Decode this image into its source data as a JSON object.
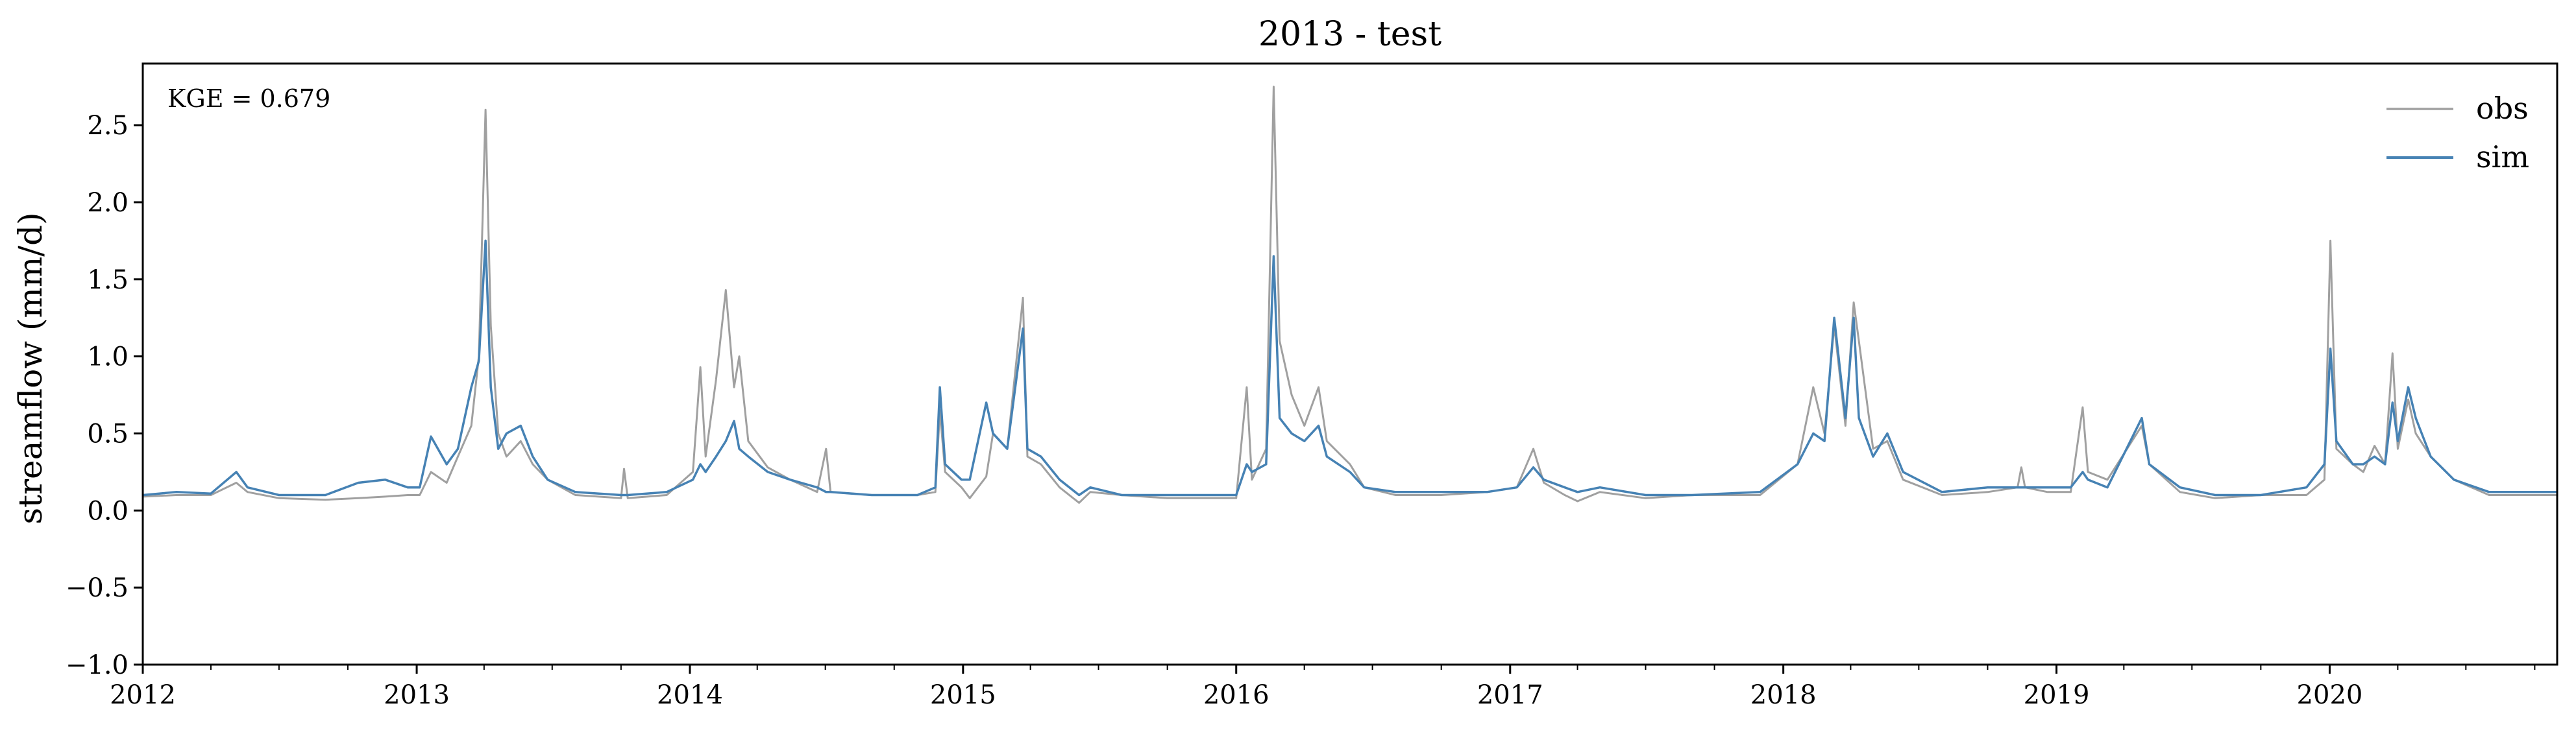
{
  "chart_data": {
    "type": "line",
    "title": "2013 - test",
    "xlabel": "",
    "ylabel": "streamflow (mm/d)",
    "annotation": "KGE = 0.679",
    "x_range": [
      "2012-01-01",
      "2020-10-31"
    ],
    "x_ticks": [
      "2012",
      "2013",
      "2014",
      "2015",
      "2016",
      "2017",
      "2018",
      "2019",
      "2020"
    ],
    "ylim": [
      -1.0,
      2.9
    ],
    "y_ticks": [
      "−1.0",
      "−0.5",
      "0.0",
      "0.5",
      "1.0",
      "1.5",
      "2.0",
      "2.5"
    ],
    "y_tick_values": [
      -1.0,
      -0.5,
      0.0,
      0.5,
      1.0,
      1.5,
      2.0,
      2.5
    ],
    "grid": false,
    "legend": {
      "position": "top-right",
      "entries": [
        "obs",
        "sim"
      ]
    },
    "series": [
      {
        "name": "obs",
        "color": "#a0a0a0",
        "points": [
          [
            "2012-01-01",
            0.09
          ],
          [
            "2012-02-15",
            0.1
          ],
          [
            "2012-04-01",
            0.1
          ],
          [
            "2012-05-05",
            0.18
          ],
          [
            "2012-05-20",
            0.12
          ],
          [
            "2012-07-01",
            0.08
          ],
          [
            "2012-09-01",
            0.07
          ],
          [
            "2012-10-15",
            0.08
          ],
          [
            "2012-11-20",
            0.09
          ],
          [
            "2012-12-20",
            0.1
          ],
          [
            "2013-01-05",
            0.1
          ],
          [
            "2013-01-20",
            0.25
          ],
          [
            "2013-02-10",
            0.18
          ],
          [
            "2013-02-25",
            0.35
          ],
          [
            "2013-03-15",
            0.55
          ],
          [
            "2013-03-25",
            1.0
          ],
          [
            "2013-04-03",
            2.6
          ],
          [
            "2013-04-10",
            1.2
          ],
          [
            "2013-04-20",
            0.5
          ],
          [
            "2013-05-01",
            0.35
          ],
          [
            "2013-05-20",
            0.45
          ],
          [
            "2013-06-05",
            0.3
          ],
          [
            "2013-06-25",
            0.2
          ],
          [
            "2013-08-01",
            0.1
          ],
          [
            "2013-10-01",
            0.08
          ],
          [
            "2013-10-05",
            0.27
          ],
          [
            "2013-10-10",
            0.08
          ],
          [
            "2013-12-01",
            0.1
          ],
          [
            "2014-01-05",
            0.25
          ],
          [
            "2014-01-15",
            0.93
          ],
          [
            "2014-01-22",
            0.35
          ],
          [
            "2014-02-05",
            0.85
          ],
          [
            "2014-02-18",
            1.43
          ],
          [
            "2014-03-01",
            0.8
          ],
          [
            "2014-03-08",
            1.0
          ],
          [
            "2014-03-20",
            0.45
          ],
          [
            "2014-04-15",
            0.28
          ],
          [
            "2014-05-15",
            0.2
          ],
          [
            "2014-06-20",
            0.12
          ],
          [
            "2014-07-02",
            0.4
          ],
          [
            "2014-07-08",
            0.12
          ],
          [
            "2014-09-01",
            0.1
          ],
          [
            "2014-11-01",
            0.1
          ],
          [
            "2014-11-25",
            0.12
          ],
          [
            "2014-12-01",
            0.65
          ],
          [
            "2014-12-08",
            0.25
          ],
          [
            "2014-12-30",
            0.15
          ],
          [
            "2015-01-10",
            0.08
          ],
          [
            "2015-02-01",
            0.22
          ],
          [
            "2015-02-10",
            0.5
          ],
          [
            "2015-03-01",
            0.4
          ],
          [
            "2015-03-22",
            1.38
          ],
          [
            "2015-03-28",
            0.35
          ],
          [
            "2015-04-15",
            0.3
          ],
          [
            "2015-05-10",
            0.15
          ],
          [
            "2015-06-05",
            0.05
          ],
          [
            "2015-06-20",
            0.12
          ],
          [
            "2015-08-01",
            0.1
          ],
          [
            "2015-10-01",
            0.08
          ],
          [
            "2016-01-01",
            0.08
          ],
          [
            "2016-01-15",
            0.8
          ],
          [
            "2016-01-22",
            0.2
          ],
          [
            "2016-02-10",
            0.4
          ],
          [
            "2016-02-20",
            2.75
          ],
          [
            "2016-02-28",
            1.1
          ],
          [
            "2016-03-15",
            0.75
          ],
          [
            "2016-04-01",
            0.55
          ],
          [
            "2016-04-20",
            0.8
          ],
          [
            "2016-05-01",
            0.45
          ],
          [
            "2016-06-01",
            0.3
          ],
          [
            "2016-06-20",
            0.15
          ],
          [
            "2016-08-01",
            0.1
          ],
          [
            "2016-10-01",
            0.1
          ],
          [
            "2016-12-01",
            0.12
          ],
          [
            "2017-01-10",
            0.15
          ],
          [
            "2017-02-01",
            0.4
          ],
          [
            "2017-02-15",
            0.18
          ],
          [
            "2017-03-15",
            0.1
          ],
          [
            "2017-04-01",
            0.06
          ],
          [
            "2017-05-01",
            0.12
          ],
          [
            "2017-07-01",
            0.08
          ],
          [
            "2017-09-01",
            0.1
          ],
          [
            "2017-12-01",
            0.1
          ],
          [
            "2018-01-20",
            0.3
          ],
          [
            "2018-02-10",
            0.8
          ],
          [
            "2018-02-25",
            0.5
          ],
          [
            "2018-03-10",
            1.2
          ],
          [
            "2018-03-25",
            0.55
          ],
          [
            "2018-04-05",
            1.35
          ],
          [
            "2018-04-12",
            1.1
          ],
          [
            "2018-05-01",
            0.4
          ],
          [
            "2018-05-20",
            0.45
          ],
          [
            "2018-06-10",
            0.2
          ],
          [
            "2018-08-01",
            0.1
          ],
          [
            "2018-10-01",
            0.12
          ],
          [
            "2018-11-10",
            0.15
          ],
          [
            "2018-11-15",
            0.28
          ],
          [
            "2018-11-20",
            0.15
          ],
          [
            "2018-12-20",
            0.12
          ],
          [
            "2019-01-20",
            0.12
          ],
          [
            "2019-02-05",
            0.67
          ],
          [
            "2019-02-12",
            0.25
          ],
          [
            "2019-03-10",
            0.2
          ],
          [
            "2019-04-25",
            0.55
          ],
          [
            "2019-05-05",
            0.3
          ],
          [
            "2019-06-15",
            0.12
          ],
          [
            "2019-08-01",
            0.08
          ],
          [
            "2019-10-01",
            0.1
          ],
          [
            "2019-12-01",
            0.1
          ],
          [
            "2019-12-25",
            0.2
          ],
          [
            "2020-01-02",
            1.75
          ],
          [
            "2020-01-10",
            0.4
          ],
          [
            "2020-02-01",
            0.3
          ],
          [
            "2020-02-15",
            0.25
          ],
          [
            "2020-03-01",
            0.42
          ],
          [
            "2020-03-15",
            0.3
          ],
          [
            "2020-03-25",
            1.02
          ],
          [
            "2020-04-01",
            0.4
          ],
          [
            "2020-04-15",
            0.72
          ],
          [
            "2020-04-25",
            0.5
          ],
          [
            "2020-05-15",
            0.35
          ],
          [
            "2020-06-15",
            0.2
          ],
          [
            "2020-08-01",
            0.1
          ],
          [
            "2020-10-31",
            0.1
          ]
        ]
      },
      {
        "name": "sim",
        "color": "#4682b4",
        "points": [
          [
            "2012-01-01",
            0.1
          ],
          [
            "2012-02-15",
            0.12
          ],
          [
            "2012-04-01",
            0.11
          ],
          [
            "2012-05-05",
            0.25
          ],
          [
            "2012-05-20",
            0.15
          ],
          [
            "2012-07-01",
            0.1
          ],
          [
            "2012-09-01",
            0.1
          ],
          [
            "2012-10-15",
            0.18
          ],
          [
            "2012-11-20",
            0.2
          ],
          [
            "2012-12-20",
            0.15
          ],
          [
            "2013-01-05",
            0.15
          ],
          [
            "2013-01-20",
            0.48
          ],
          [
            "2013-02-10",
            0.3
          ],
          [
            "2013-02-25",
            0.4
          ],
          [
            "2013-03-15",
            0.8
          ],
          [
            "2013-03-25",
            0.97
          ],
          [
            "2013-04-03",
            1.75
          ],
          [
            "2013-04-10",
            0.8
          ],
          [
            "2013-04-20",
            0.4
          ],
          [
            "2013-05-01",
            0.5
          ],
          [
            "2013-05-20",
            0.55
          ],
          [
            "2013-06-05",
            0.35
          ],
          [
            "2013-06-25",
            0.2
          ],
          [
            "2013-08-01",
            0.12
          ],
          [
            "2013-10-01",
            0.1
          ],
          [
            "2013-10-05",
            0.1
          ],
          [
            "2013-10-10",
            0.1
          ],
          [
            "2013-12-01",
            0.12
          ],
          [
            "2014-01-05",
            0.2
          ],
          [
            "2014-01-15",
            0.3
          ],
          [
            "2014-01-22",
            0.25
          ],
          [
            "2014-02-05",
            0.35
          ],
          [
            "2014-02-18",
            0.45
          ],
          [
            "2014-03-01",
            0.58
          ],
          [
            "2014-03-08",
            0.4
          ],
          [
            "2014-03-20",
            0.35
          ],
          [
            "2014-04-15",
            0.25
          ],
          [
            "2014-05-15",
            0.2
          ],
          [
            "2014-06-20",
            0.15
          ],
          [
            "2014-07-02",
            0.12
          ],
          [
            "2014-07-08",
            0.12
          ],
          [
            "2014-09-01",
            0.1
          ],
          [
            "2014-11-01",
            0.1
          ],
          [
            "2014-11-25",
            0.15
          ],
          [
            "2014-12-01",
            0.8
          ],
          [
            "2014-12-08",
            0.3
          ],
          [
            "2014-12-30",
            0.2
          ],
          [
            "2015-01-10",
            0.2
          ],
          [
            "2015-02-01",
            0.7
          ],
          [
            "2015-02-10",
            0.5
          ],
          [
            "2015-03-01",
            0.4
          ],
          [
            "2015-03-22",
            1.18
          ],
          [
            "2015-03-28",
            0.4
          ],
          [
            "2015-04-15",
            0.35
          ],
          [
            "2015-05-10",
            0.2
          ],
          [
            "2015-06-05",
            0.1
          ],
          [
            "2015-06-20",
            0.15
          ],
          [
            "2015-08-01",
            0.1
          ],
          [
            "2015-10-01",
            0.1
          ],
          [
            "2016-01-01",
            0.1
          ],
          [
            "2016-01-15",
            0.3
          ],
          [
            "2016-01-22",
            0.25
          ],
          [
            "2016-02-10",
            0.3
          ],
          [
            "2016-02-20",
            1.65
          ],
          [
            "2016-02-28",
            0.6
          ],
          [
            "2016-03-15",
            0.5
          ],
          [
            "2016-04-01",
            0.45
          ],
          [
            "2016-04-20",
            0.55
          ],
          [
            "2016-05-01",
            0.35
          ],
          [
            "2016-06-01",
            0.25
          ],
          [
            "2016-06-20",
            0.15
          ],
          [
            "2016-08-01",
            0.12
          ],
          [
            "2016-10-01",
            0.12
          ],
          [
            "2016-12-01",
            0.12
          ],
          [
            "2017-01-10",
            0.15
          ],
          [
            "2017-02-01",
            0.28
          ],
          [
            "2017-02-15",
            0.2
          ],
          [
            "2017-03-15",
            0.15
          ],
          [
            "2017-04-01",
            0.12
          ],
          [
            "2017-05-01",
            0.15
          ],
          [
            "2017-07-01",
            0.1
          ],
          [
            "2017-09-01",
            0.1
          ],
          [
            "2017-12-01",
            0.12
          ],
          [
            "2018-01-20",
            0.3
          ],
          [
            "2018-02-10",
            0.5
          ],
          [
            "2018-02-25",
            0.45
          ],
          [
            "2018-03-10",
            1.25
          ],
          [
            "2018-03-25",
            0.6
          ],
          [
            "2018-04-05",
            1.25
          ],
          [
            "2018-04-12",
            0.6
          ],
          [
            "2018-05-01",
            0.35
          ],
          [
            "2018-05-20",
            0.5
          ],
          [
            "2018-06-10",
            0.25
          ],
          [
            "2018-08-01",
            0.12
          ],
          [
            "2018-10-01",
            0.15
          ],
          [
            "2018-11-10",
            0.15
          ],
          [
            "2018-11-15",
            0.15
          ],
          [
            "2018-11-20",
            0.15
          ],
          [
            "2018-12-20",
            0.15
          ],
          [
            "2019-01-20",
            0.15
          ],
          [
            "2019-02-05",
            0.25
          ],
          [
            "2019-02-12",
            0.2
          ],
          [
            "2019-03-10",
            0.15
          ],
          [
            "2019-04-25",
            0.6
          ],
          [
            "2019-05-05",
            0.3
          ],
          [
            "2019-06-15",
            0.15
          ],
          [
            "2019-08-01",
            0.1
          ],
          [
            "2019-10-01",
            0.1
          ],
          [
            "2019-12-01",
            0.15
          ],
          [
            "2019-12-25",
            0.3
          ],
          [
            "2020-01-02",
            1.05
          ],
          [
            "2020-01-10",
            0.45
          ],
          [
            "2020-02-01",
            0.3
          ],
          [
            "2020-02-15",
            0.3
          ],
          [
            "2020-03-01",
            0.35
          ],
          [
            "2020-03-15",
            0.3
          ],
          [
            "2020-03-25",
            0.7
          ],
          [
            "2020-04-01",
            0.45
          ],
          [
            "2020-04-15",
            0.8
          ],
          [
            "2020-04-25",
            0.6
          ],
          [
            "2020-05-15",
            0.35
          ],
          [
            "2020-06-15",
            0.2
          ],
          [
            "2020-08-01",
            0.12
          ],
          [
            "2020-10-31",
            0.12
          ]
        ]
      }
    ]
  }
}
